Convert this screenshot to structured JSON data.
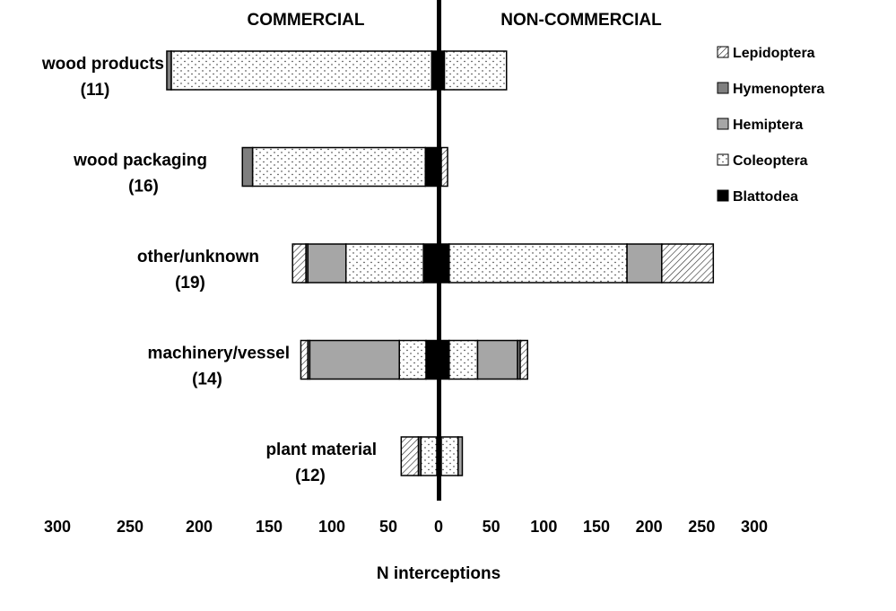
{
  "chart_data": {
    "type": "bar",
    "orientation": "horizontal-diverging-stacked",
    "xlabel": "N interceptions",
    "side_labels": {
      "left": "COMMERCIAL",
      "right": "NON-COMMERCIAL"
    },
    "x_ticks_left": [
      "300",
      "250",
      "200",
      "150",
      "100",
      "50"
    ],
    "x_ticks_right": [
      "0",
      "50",
      "100",
      "150",
      "200",
      "250",
      "300"
    ],
    "xlim": [
      0,
      300
    ],
    "legend_position": "top-right",
    "series": [
      "Lepidoptera",
      "Hymenoptera",
      "Hemiptera",
      "Coleoptera",
      "Blattodea"
    ],
    "categories": [
      {
        "label": "wood products",
        "count": "(11)",
        "commercial": {
          "Blattodea": 4,
          "Coleoptera": 205,
          "Hemiptera": 0,
          "Hymenoptera": 3.5,
          "Lepidoptera": 0
        },
        "noncommercial": {
          "Blattodea": 3,
          "Coleoptera": 59,
          "Hemiptera": 0,
          "Hymenoptera": 0,
          "Lepidoptera": 0
        }
      },
      {
        "label": "wood packaging",
        "count": "(16)",
        "commercial": {
          "Blattodea": 9,
          "Coleoptera": 136,
          "Hemiptera": 0,
          "Hymenoptera": 8,
          "Lepidoptera": 0
        },
        "noncommercial": {
          "Blattodea": 0,
          "Coleoptera": 0,
          "Hemiptera": 0,
          "Hymenoptera": 0,
          "Lepidoptera": 6
        }
      },
      {
        "label": "other/unknown",
        "count": "(19)",
        "commercial": {
          "Blattodea": 10.5,
          "Coleoptera": 61,
          "Hemiptera": 30,
          "Hymenoptera": 1.5,
          "Lepidoptera": 10.5
        },
        "noncommercial": {
          "Blattodea": 7.5,
          "Coleoptera": 169,
          "Hemiptera": 33,
          "Hymenoptera": 0,
          "Lepidoptera": 49
        }
      },
      {
        "label": "machinery/vessel",
        "count": "(14)",
        "commercial": {
          "Blattodea": 8.5,
          "Coleoptera": 21,
          "Hemiptera": 70.5,
          "Hymenoptera": 1.5,
          "Lepidoptera": 5.5
        },
        "noncommercial": {
          "Blattodea": 7.5,
          "Coleoptera": 27,
          "Hemiptera": 38,
          "Hymenoptera": 2.5,
          "Lepidoptera": 7
        }
      },
      {
        "label": "plant material",
        "count": "(12)",
        "commercial": {
          "Blattodea": 0,
          "Coleoptera": 12.5,
          "Hemiptera": 0,
          "Hymenoptera": 2,
          "Lepidoptera": 13.5
        },
        "noncommercial": {
          "Blattodea": 0,
          "Coleoptera": 16,
          "Hemiptera": 4,
          "Hymenoptera": 0,
          "Lepidoptera": 0
        }
      }
    ]
  },
  "colors": {
    "Hymenoptera": "#7f7f7f",
    "Hemiptera": "#a6a6a6",
    "Blattodea": "#000000",
    "Coleoptera": "#ffffff",
    "Lepidoptera": "#ffffff"
  }
}
